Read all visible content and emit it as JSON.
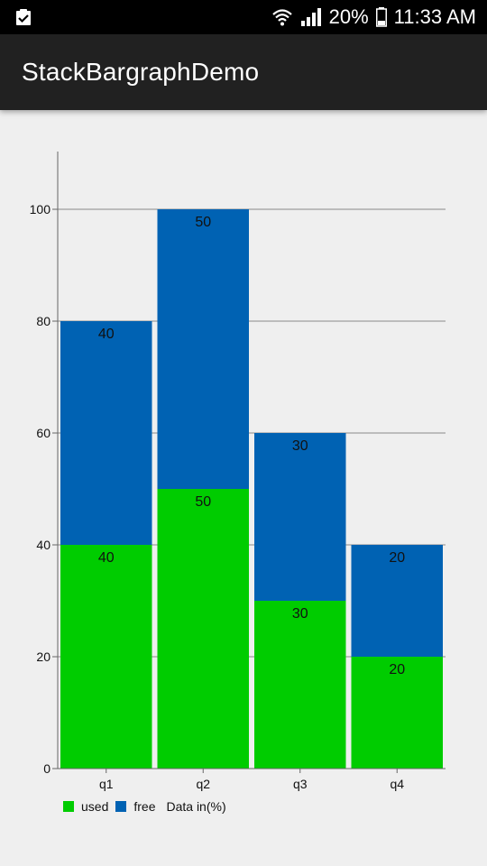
{
  "status_bar": {
    "battery_percent": "20%",
    "time": "11:33 AM",
    "icons": [
      "clipboard-check-icon",
      "wifi-icon",
      "signal-icon",
      "battery-icon"
    ]
  },
  "app_bar": {
    "title": "StackBargraphDemo"
  },
  "colors": {
    "used": "#00cc00",
    "free": "#0062b3",
    "grid": "#8a8a8a",
    "axis": "#666666",
    "background": "#efefef"
  },
  "chart_data": {
    "type": "bar",
    "stacked": true,
    "categories": [
      "q1",
      "q2",
      "q3",
      "q4"
    ],
    "series": [
      {
        "name": "used",
        "values": [
          40,
          50,
          30,
          20
        ]
      },
      {
        "name": "free",
        "values": [
          40,
          50,
          30,
          20
        ]
      }
    ],
    "title": "",
    "xlabel": "",
    "ylabel": "",
    "ylim": [
      0,
      110
    ],
    "yticks": [
      0,
      20,
      40,
      60,
      80,
      100
    ],
    "grid": true,
    "legend_position": "bottom-left",
    "legend_note": "Data in(%)"
  }
}
